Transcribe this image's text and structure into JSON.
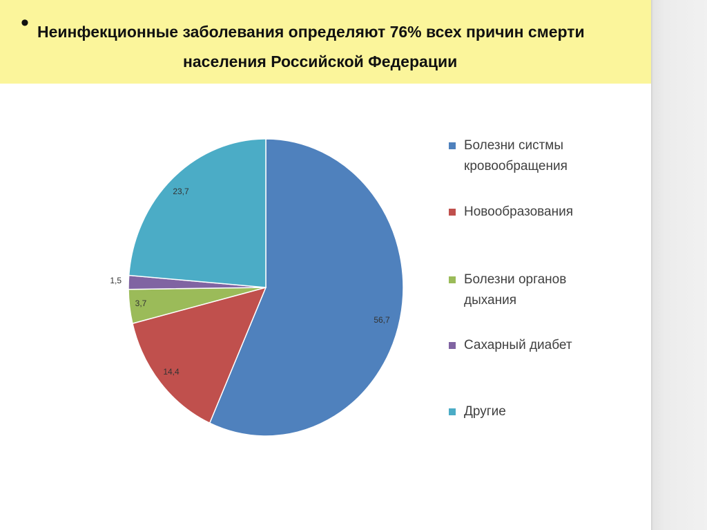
{
  "title": {
    "bullet": "•",
    "line1": "Неинфекционные заболевания определяют 76% всех причин смерти",
    "line2": "населения Российской Федерации"
  },
  "chart_data": {
    "type": "pie",
    "start_angle_deg": 0,
    "direction": "clockwise",
    "slices": [
      {
        "label": "Болезни систмы кровообращения",
        "legend_lines": [
          "Болезни систмы",
          "кровообращения"
        ],
        "value": 56.7,
        "value_label": "56,7",
        "color": "#4f81bd"
      },
      {
        "label": "Новообразования",
        "legend_lines": [
          "Новообразования"
        ],
        "value": 14.4,
        "value_label": "14,4",
        "color": "#c0504d"
      },
      {
        "label": "Болезни органов дыхания",
        "legend_lines": [
          "Болезни органов",
          "дыхания"
        ],
        "value": 3.7,
        "value_label": "3,7",
        "color": "#9bbb59"
      },
      {
        "label": "Сахарный диабет",
        "legend_lines": [
          "Сахарный диабет"
        ],
        "value": 1.5,
        "value_label": "1,5",
        "color": "#8064a2"
      },
      {
        "label": "Другие",
        "legend_lines": [
          "Другие"
        ],
        "value": 23.7,
        "value_label": "23,7",
        "color": "#4bacc6"
      }
    ],
    "legend_placement": "right"
  }
}
